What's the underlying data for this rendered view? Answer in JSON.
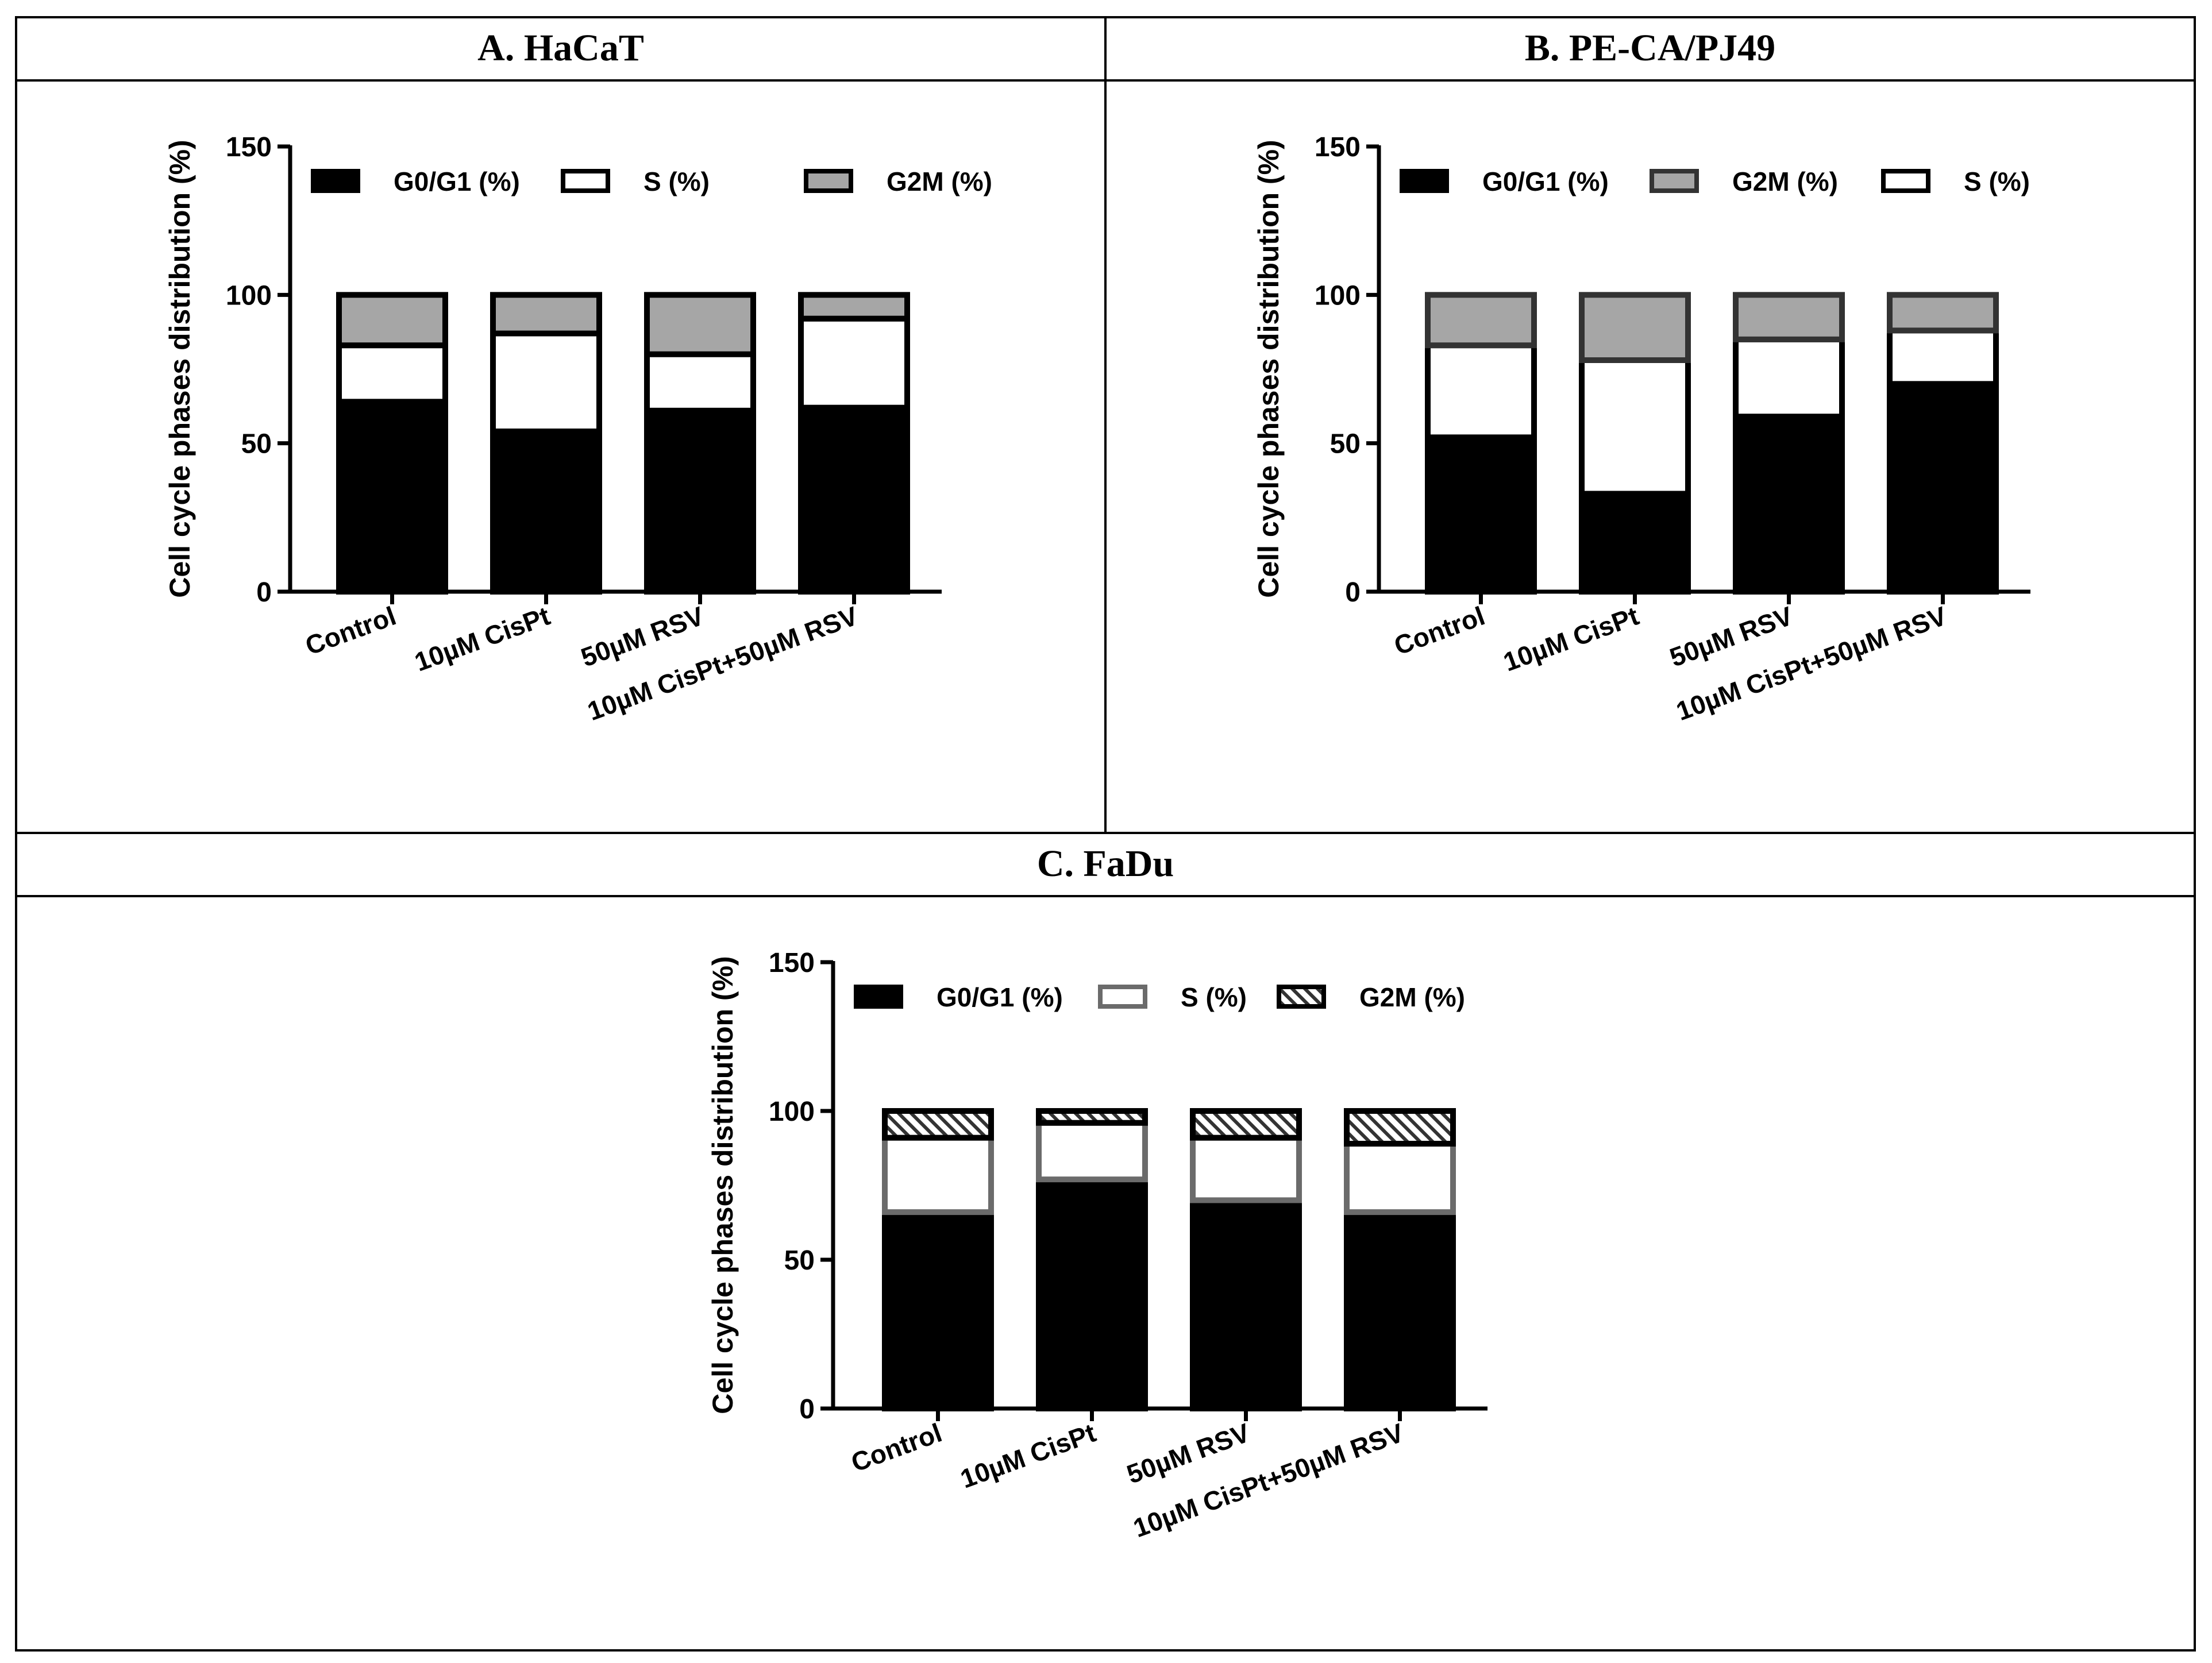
{
  "colors": {
    "black": "#000000",
    "white": "#ffffff",
    "gray": "#a6a6a6",
    "dark_border": "#333333",
    "mid_border": "#6b6b6b"
  },
  "panels": [
    {
      "title": "A. HaCaT"
    },
    {
      "title": "B. PE-CA/PJ49"
    },
    {
      "title": "C. FaDu"
    }
  ],
  "chart_data": [
    {
      "type": "bar",
      "stacked": true,
      "title": "A. HaCaT",
      "ylabel": "Cell cycle phases distribution (%)",
      "xlabel": "",
      "ylim": [
        0,
        150
      ],
      "yticks": [
        0,
        50,
        100,
        150
      ],
      "categories": [
        "Control",
        "10µM CisPt",
        "50µM RSV",
        "10µM CisPt+50µM RSV"
      ],
      "legend_position": "top",
      "series": [
        {
          "name": "G0/G1 (%)",
          "fill": "#000000",
          "stroke": "#000000",
          "pattern": "solid",
          "values": [
            64,
            54,
            61,
            62
          ]
        },
        {
          "name": "S (%)",
          "fill": "#ffffff",
          "stroke": "#000000",
          "pattern": "solid",
          "values": [
            19,
            33,
            19,
            30
          ]
        },
        {
          "name": "G2M (%)",
          "fill": "#a6a6a6",
          "stroke": "#000000",
          "pattern": "solid",
          "values": [
            17,
            13,
            20,
            8
          ]
        }
      ],
      "legend_order": [
        0,
        1,
        2
      ]
    },
    {
      "type": "bar",
      "stacked": true,
      "title": "B. PE-CA/PJ49",
      "ylabel": "Cell cycle phases distribution (%)",
      "xlabel": "",
      "ylim": [
        0,
        150
      ],
      "yticks": [
        0,
        50,
        100,
        150
      ],
      "categories": [
        "Control",
        "10µM CisPt",
        "50µM RSV",
        "10µM CisPt+50µM RSV"
      ],
      "legend_position": "top",
      "series": [
        {
          "name": "G0/G1 (%)",
          "fill": "#000000",
          "stroke": "#000000",
          "pattern": "solid",
          "values": [
            52,
            33,
            59,
            70
          ]
        },
        {
          "name": "S (%)",
          "fill": "#ffffff",
          "stroke": "#000000",
          "pattern": "solid",
          "values": [
            31,
            45,
            26,
            18
          ]
        },
        {
          "name": "G2M (%)",
          "fill": "#a6a6a6",
          "stroke": "#333333",
          "pattern": "solid",
          "values": [
            17,
            22,
            15,
            12
          ]
        }
      ],
      "legend_order": [
        0,
        2,
        1
      ]
    },
    {
      "type": "bar",
      "stacked": true,
      "title": "C. FaDu",
      "ylabel": "Cell cycle phases distribution (%)",
      "xlabel": "",
      "ylim": [
        0,
        150
      ],
      "yticks": [
        0,
        50,
        100,
        150
      ],
      "categories": [
        "Control",
        "10µM CisPt",
        "50µM RSV",
        "10µM CisPt+50µM RSV"
      ],
      "legend_position": "top",
      "series": [
        {
          "name": "G0/G1 (%)",
          "fill": "#000000",
          "stroke": "#000000",
          "pattern": "solid",
          "values": [
            66,
            77,
            70,
            66
          ]
        },
        {
          "name": "S (%)",
          "fill": "#ffffff",
          "stroke": "#6b6b6b",
          "pattern": "solid",
          "values": [
            25,
            19,
            21,
            23
          ]
        },
        {
          "name": "G2M (%)",
          "fill": "#ffffff",
          "stroke": "#000000",
          "pattern": "hatch",
          "values": [
            9,
            4,
            9,
            11
          ]
        }
      ],
      "legend_order": [
        0,
        1,
        2
      ]
    }
  ]
}
